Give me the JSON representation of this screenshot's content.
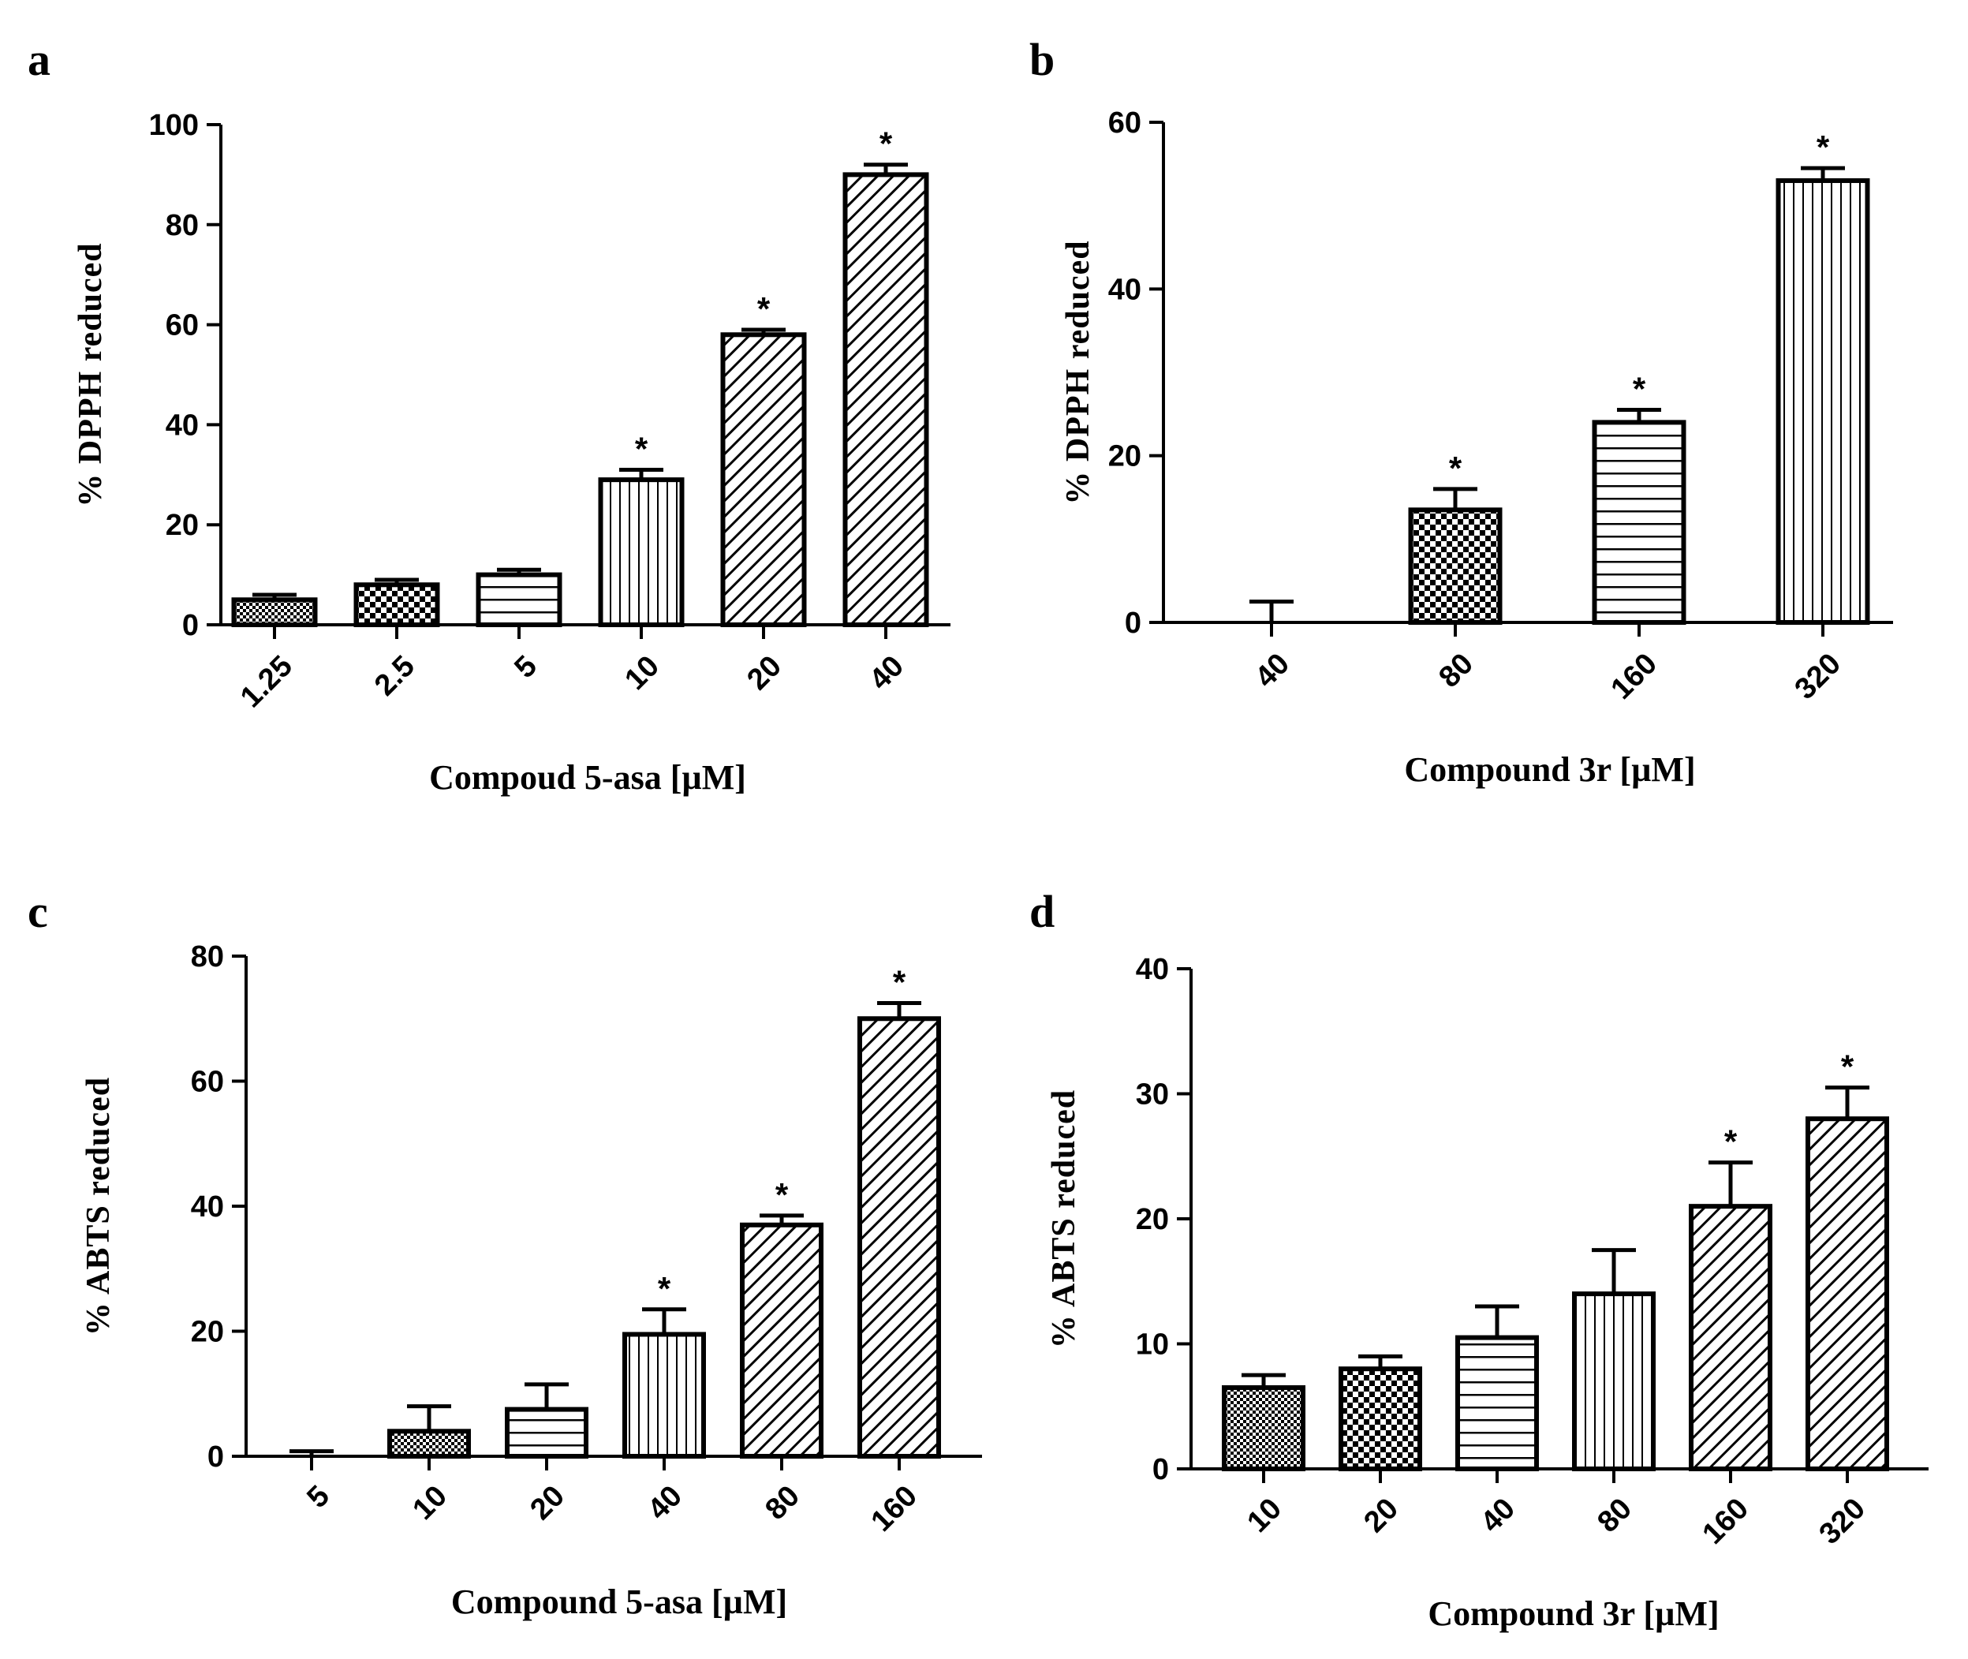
{
  "chart_data": [
    {
      "panel": "a",
      "type": "bar",
      "xlabel": "Compoud 5-asa [µM]",
      "ylabel": "% DPPH reduced",
      "ylim": [
        0,
        100
      ],
      "yticks": [
        0,
        20,
        40,
        60,
        80,
        100
      ],
      "categories": [
        "1.25",
        "2.5",
        "5",
        "10",
        "20",
        "40"
      ],
      "values": [
        5,
        8,
        10,
        29,
        58,
        90
      ],
      "errors": [
        1,
        1,
        1,
        2,
        1,
        2
      ],
      "significant": [
        false,
        false,
        false,
        true,
        true,
        true
      ],
      "patterns": [
        "fine-check",
        "check",
        "hlines",
        "vlines",
        "diag",
        "diag"
      ]
    },
    {
      "panel": "b",
      "type": "bar",
      "xlabel": "Compound 3r [µM]",
      "ylabel": "% DPPH reduced",
      "ylim": [
        0,
        60
      ],
      "yticks": [
        0,
        20,
        40,
        60
      ],
      "categories": [
        "40",
        "80",
        "160",
        "320"
      ],
      "values": [
        0,
        13.5,
        24,
        53
      ],
      "errors": [
        2.5,
        2.5,
        1.5,
        1.5
      ],
      "significant": [
        false,
        true,
        true,
        true
      ],
      "patterns": [
        "none",
        "check",
        "hlines",
        "vlines"
      ]
    },
    {
      "panel": "c",
      "type": "bar",
      "xlabel": "Compound 5-asa [µM]",
      "ylabel": "% ABTS  reduced",
      "ylim": [
        0,
        80
      ],
      "yticks": [
        0,
        20,
        40,
        60,
        80
      ],
      "categories": [
        "5",
        "10",
        "20",
        "40",
        "80",
        "160"
      ],
      "values": [
        0,
        4,
        7.5,
        19.5,
        37,
        70
      ],
      "errors": [
        0.8,
        4,
        4,
        4,
        1.5,
        2.5
      ],
      "significant": [
        false,
        false,
        false,
        true,
        true,
        true
      ],
      "patterns": [
        "none",
        "fine-check",
        "hlines",
        "vlines",
        "diag",
        "diag"
      ]
    },
    {
      "panel": "d",
      "type": "bar",
      "xlabel": "Compound 3r [µM]",
      "ylabel": "% ABTS  reduced",
      "ylim": [
        0,
        40
      ],
      "yticks": [
        0,
        10,
        20,
        30,
        40
      ],
      "categories": [
        "10",
        "20",
        "40",
        "80",
        "160",
        "320"
      ],
      "values": [
        6.5,
        8,
        10.5,
        14,
        21,
        28
      ],
      "errors": [
        1,
        1,
        2.5,
        3.5,
        3.5,
        2.5
      ],
      "significant": [
        false,
        false,
        false,
        false,
        true,
        true
      ],
      "patterns": [
        "fine-check",
        "check",
        "hlines",
        "vlines",
        "diag",
        "diag"
      ]
    }
  ],
  "significance_marker": "*"
}
